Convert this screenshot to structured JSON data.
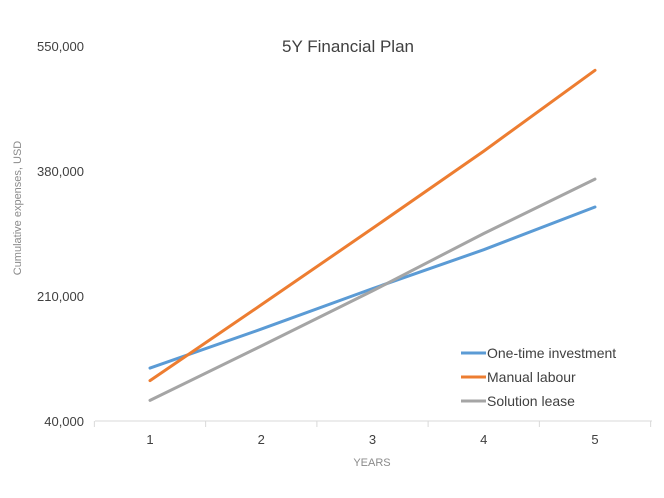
{
  "chart_data": {
    "type": "line",
    "title": "5Y Financial Plan",
    "xlabel": "YEARS",
    "ylabel": "Cumulative expenses, USD",
    "x": [
      1,
      2,
      3,
      4,
      5
    ],
    "x_tick_labels": [
      "1",
      "2",
      "3",
      "4",
      "5"
    ],
    "y_ticks": [
      40000,
      210000,
      380000,
      550000
    ],
    "y_tick_labels": [
      "40,000",
      "210,000",
      "380,000",
      "550,000"
    ],
    "ylim": [
      40000,
      550000
    ],
    "grid": false,
    "legend_position": "bottom-right",
    "series": [
      {
        "name": "One-time investment",
        "color": "#5b9bd5",
        "values": [
          112000,
          165000,
          220000,
          273000,
          331000
        ]
      },
      {
        "name": "Manual labour",
        "color": "#ed7d31",
        "values": [
          95000,
          198000,
          302000,
          407000,
          517000
        ]
      },
      {
        "name": "Solution lease",
        "color": "#a5a5a5",
        "values": [
          68000,
          142000,
          217000,
          295000,
          369000
        ]
      }
    ]
  }
}
